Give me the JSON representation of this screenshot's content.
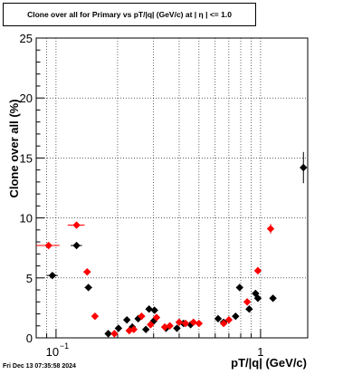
{
  "chart_data": {
    "type": "scatter",
    "title": "Clone  over all for Primary vs pT/|q| (GeV/c) at |  η  | <= 1.0",
    "xlabel": "pT/|q| (GeV/c)",
    "ylabel": "Clone  over all (%)",
    "xscale": "log",
    "xlim": [
      0.08,
      1.7
    ],
    "ylim": [
      0,
      25
    ],
    "grid": true,
    "yticks": [
      {
        "v": 0,
        "label": "0"
      },
      {
        "v": 5,
        "label": "5"
      },
      {
        "v": 10,
        "label": "10"
      },
      {
        "v": 15,
        "label": "15"
      },
      {
        "v": 20,
        "label": "20"
      },
      {
        "v": 25,
        "label": "25"
      }
    ],
    "xticks": [
      {
        "v": 0.1,
        "label": "10",
        "exp": "−1"
      },
      {
        "v": 1,
        "label": "1",
        "exp": ""
      }
    ],
    "series": [
      {
        "color": "#000000",
        "points": [
          {
            "x": 0.096,
            "y": 5.2,
            "xerr": 0.006,
            "yerr": 0.25
          },
          {
            "x": 0.126,
            "y": 7.7,
            "xerr": 0.008,
            "yerr": 0.25
          },
          {
            "x": 0.144,
            "y": 4.2,
            "xerr": 0.006,
            "yerr": 0.2
          },
          {
            "x": 0.18,
            "y": 0.35,
            "xerr": 0.006,
            "yerr": 0.12
          },
          {
            "x": 0.202,
            "y": 0.8,
            "xerr": 0.006,
            "yerr": 0.12
          },
          {
            "x": 0.222,
            "y": 1.5,
            "xerr": 0.006,
            "yerr": 0.12
          },
          {
            "x": 0.236,
            "y": 0.9,
            "xerr": 0.006,
            "yerr": 0.12
          },
          {
            "x": 0.252,
            "y": 1.6,
            "xerr": 0.006,
            "yerr": 0.12
          },
          {
            "x": 0.275,
            "y": 0.7,
            "xerr": 0.006,
            "yerr": 0.12
          },
          {
            "x": 0.285,
            "y": 2.4,
            "xerr": 0.006,
            "yerr": 0.15
          },
          {
            "x": 0.3,
            "y": 1.4,
            "xerr": 0.006,
            "yerr": 0.12
          },
          {
            "x": 0.303,
            "y": 2.3,
            "xerr": 0.006,
            "yerr": 0.15
          },
          {
            "x": 0.345,
            "y": 0.8,
            "xerr": 0.006,
            "yerr": 0.12
          },
          {
            "x": 0.39,
            "y": 0.8,
            "xerr": 0.006,
            "yerr": 0.12
          },
          {
            "x": 0.42,
            "y": 1.2,
            "xerr": 0.006,
            "yerr": 0.12
          },
          {
            "x": 0.455,
            "y": 1.1,
            "xerr": 0.006,
            "yerr": 0.12
          },
          {
            "x": 0.62,
            "y": 1.6,
            "xerr": 0.01,
            "yerr": 0.12
          },
          {
            "x": 0.66,
            "y": 1.3,
            "xerr": 0.01,
            "yerr": 0.12
          },
          {
            "x": 0.755,
            "y": 1.8,
            "xerr": 0.01,
            "yerr": 0.12
          },
          {
            "x": 0.79,
            "y": 4.2,
            "xerr": 0.01,
            "yerr": 0.25
          },
          {
            "x": 0.88,
            "y": 2.4,
            "xerr": 0.015,
            "yerr": 0.2
          },
          {
            "x": 0.945,
            "y": 3.7,
            "xerr": 0.015,
            "yerr": 0.25
          },
          {
            "x": 0.97,
            "y": 3.3,
            "xerr": 0.015,
            "yerr": 0.2
          },
          {
            "x": 1.15,
            "y": 3.3,
            "xerr": 0.02,
            "yerr": 0.2
          },
          {
            "x": 1.62,
            "y": 14.2,
            "xerr": 0.02,
            "yerr": 1.3
          }
        ]
      },
      {
        "color": "#ff0000",
        "points": [
          {
            "x": 0.092,
            "y": 7.7,
            "xerr": 0.012,
            "yerr": 0.25
          },
          {
            "x": 0.126,
            "y": 9.4,
            "xerr": 0.012,
            "yerr": 0.25
          },
          {
            "x": 0.142,
            "y": 5.5,
            "xerr": 0.006,
            "yerr": 0.2
          },
          {
            "x": 0.155,
            "y": 1.8,
            "xerr": 0.006,
            "yerr": 0.15
          },
          {
            "x": 0.193,
            "y": 0.35,
            "xerr": 0.006,
            "yerr": 0.12
          },
          {
            "x": 0.228,
            "y": 0.6,
            "xerr": 0.006,
            "yerr": 0.12
          },
          {
            "x": 0.24,
            "y": 0.7,
            "xerr": 0.006,
            "yerr": 0.12
          },
          {
            "x": 0.262,
            "y": 1.8,
            "xerr": 0.006,
            "yerr": 0.15
          },
          {
            "x": 0.29,
            "y": 1.1,
            "xerr": 0.006,
            "yerr": 0.12
          },
          {
            "x": 0.31,
            "y": 1.7,
            "xerr": 0.006,
            "yerr": 0.15
          },
          {
            "x": 0.34,
            "y": 0.9,
            "xerr": 0.006,
            "yerr": 0.12
          },
          {
            "x": 0.36,
            "y": 1.0,
            "xerr": 0.006,
            "yerr": 0.12
          },
          {
            "x": 0.4,
            "y": 1.3,
            "xerr": 0.006,
            "yerr": 0.12
          },
          {
            "x": 0.43,
            "y": 1.2,
            "xerr": 0.006,
            "yerr": 0.12
          },
          {
            "x": 0.47,
            "y": 1.3,
            "xerr": 0.006,
            "yerr": 0.12
          },
          {
            "x": 0.5,
            "y": 1.2,
            "xerr": 0.006,
            "yerr": 0.12
          },
          {
            "x": 0.66,
            "y": 1.2,
            "xerr": 0.01,
            "yerr": 0.12
          },
          {
            "x": 0.7,
            "y": 1.5,
            "xerr": 0.01,
            "yerr": 0.12
          },
          {
            "x": 0.86,
            "y": 3.0,
            "xerr": 0.015,
            "yerr": 0.2
          },
          {
            "x": 0.97,
            "y": 5.6,
            "xerr": 0.02,
            "yerr": 0.3
          },
          {
            "x": 1.12,
            "y": 9.1,
            "xerr": 0.02,
            "yerr": 0.4
          }
        ]
      }
    ]
  },
  "footer": "Fri Dec 13 07:35:58 2024"
}
